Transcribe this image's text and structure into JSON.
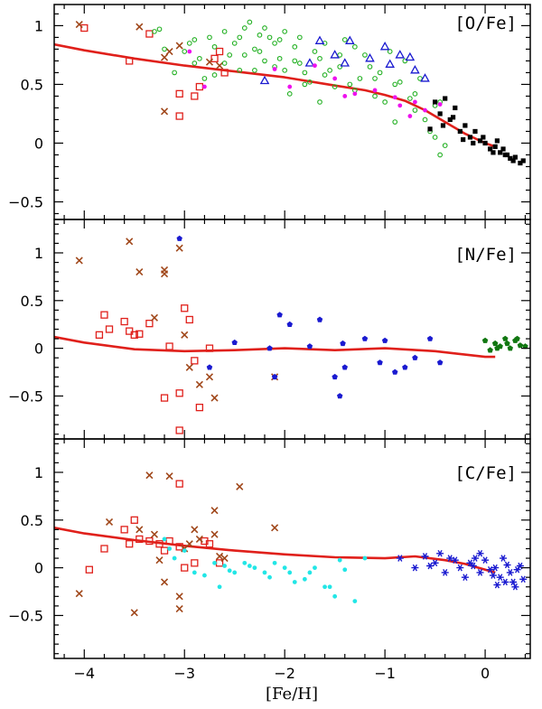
{
  "colors": {
    "model": "#e0201b",
    "red_square": "#e0201b",
    "brown_x": "#a0471a",
    "green_circle": "#22b022",
    "blue_triangle": "#1a1ad0",
    "magenta_dot": "#ee11ee",
    "black_square": "#000000",
    "blue_pentagon": "#1a1ad0",
    "green_pentagon": "#117711",
    "cyan_dot": "#22e6e6",
    "blue_star": "#1a1ad0"
  },
  "chart_data": [
    {
      "type": "scatter",
      "label": "[O/Fe]",
      "xlim": [
        -4.3,
        0.45
      ],
      "ylim": [
        -0.65,
        1.18
      ],
      "xticks": [
        -4,
        -3,
        -2,
        -1,
        0
      ],
      "yticks": [
        1,
        0.5,
        0,
        -0.5
      ],
      "ytick_labels": [
        "1",
        "0.5",
        "0",
        "−0.5"
      ],
      "model": {
        "x": [
          -4.3,
          -4.0,
          -3.5,
          -3.0,
          -2.5,
          -2.0,
          -1.5,
          -1.2,
          -1.0,
          -0.8,
          -0.6,
          -0.4,
          -0.2,
          0.0,
          0.1
        ],
        "y": [
          0.84,
          0.79,
          0.72,
          0.66,
          0.61,
          0.56,
          0.49,
          0.45,
          0.41,
          0.36,
          0.28,
          0.18,
          0.08,
          0.0,
          -0.03
        ]
      },
      "series": [
        {
          "name": "red-square",
          "marker": "square-open",
          "color": "red_square",
          "x": [
            -4.0,
            -3.55,
            -3.35,
            -3.05,
            -3.05,
            -2.9,
            -2.85,
            -2.7,
            -2.65,
            -2.6
          ],
          "y": [
            0.98,
            0.7,
            0.93,
            0.42,
            0.23,
            0.4,
            0.48,
            0.72,
            0.78,
            0.6
          ]
        },
        {
          "name": "brown-x",
          "marker": "x",
          "color": "brown_x",
          "x": [
            -4.05,
            -3.45,
            -3.2,
            -3.2,
            -3.15,
            -3.05,
            -2.75,
            -2.65
          ],
          "y": [
            1.01,
            0.99,
            0.27,
            0.73,
            0.78,
            0.83,
            0.69,
            0.66
          ]
        },
        {
          "name": "green-circle",
          "marker": "circle-open",
          "color": "green_circle",
          "x": [
            -3.3,
            -3.25,
            -3.2,
            -3.1,
            -3.0,
            -2.95,
            -2.9,
            -2.85,
            -2.8,
            -2.75,
            -2.7,
            -2.6,
            -2.55,
            -2.5,
            -2.45,
            -2.4,
            -2.35,
            -2.3,
            -2.25,
            -2.2,
            -2.2,
            -2.15,
            -2.1,
            -2.05,
            -2.0,
            -2.0,
            -1.95,
            -1.9,
            -1.85,
            -1.8,
            -1.75,
            -1.7,
            -1.65,
            -1.6,
            -1.55,
            -1.5,
            -1.45,
            -1.4,
            -1.35,
            -1.3,
            -1.25,
            -1.2,
            -1.15,
            -1.1,
            -1.05,
            -1.0,
            -0.95,
            -0.9,
            -0.85,
            -0.8,
            -0.75,
            -0.7,
            -0.65,
            -0.6,
            -0.55,
            -0.5,
            -0.45,
            -0.45,
            -0.4,
            -2.9,
            -2.6,
            -2.4,
            -2.3,
            -2.1,
            -1.9,
            -1.8,
            -1.6,
            -1.45,
            -1.3,
            -1.1,
            -0.9,
            -0.7,
            -0.5,
            -2.7,
            -2.45,
            -2.25,
            -2.05,
            -1.85,
            -1.65
          ],
          "y": [
            0.95,
            0.97,
            0.8,
            0.6,
            0.78,
            0.85,
            0.88,
            0.72,
            0.55,
            0.9,
            0.58,
            0.95,
            0.75,
            0.85,
            0.9,
            0.98,
            1.03,
            0.62,
            0.78,
            0.7,
            0.98,
            0.9,
            0.85,
            0.72,
            0.95,
            0.62,
            0.42,
            0.82,
            0.9,
            0.5,
            0.52,
            0.78,
            0.35,
            0.85,
            0.62,
            0.48,
            0.75,
            0.88,
            0.5,
            0.82,
            0.55,
            0.75,
            0.65,
            0.4,
            0.6,
            0.35,
            0.78,
            0.18,
            0.52,
            0.7,
            0.38,
            0.28,
            0.55,
            0.2,
            0.1,
            0.05,
            -0.1,
            0.35,
            -0.02,
            0.68,
            0.68,
            0.75,
            0.8,
            0.65,
            0.7,
            0.6,
            0.58,
            0.65,
            0.45,
            0.55,
            0.5,
            0.42,
            0.32,
            0.82,
            0.62,
            0.92,
            0.88,
            0.68,
            0.72
          ]
        },
        {
          "name": "blue-triangle",
          "marker": "triangle-open",
          "color": "blue_triangle",
          "x": [
            -2.2,
            -1.75,
            -1.65,
            -1.5,
            -1.4,
            -1.35,
            -1.15,
            -1.0,
            -0.95,
            -0.85,
            -0.75,
            -0.7,
            -0.6
          ],
          "y": [
            0.53,
            0.68,
            0.87,
            0.75,
            0.68,
            0.87,
            0.72,
            0.82,
            0.67,
            0.75,
            0.73,
            0.62,
            0.55
          ]
        },
        {
          "name": "magenta-dot",
          "marker": "dot",
          "color": "magenta_dot",
          "x": [
            -2.95,
            -2.8,
            -2.1,
            -1.95,
            -1.7,
            -1.4,
            -1.3,
            -1.1,
            -0.9,
            -0.85,
            -0.75,
            -0.6,
            -0.45,
            -0.7,
            -1.5
          ],
          "y": [
            0.78,
            0.48,
            0.63,
            0.48,
            0.66,
            0.4,
            0.42,
            0.45,
            0.39,
            0.32,
            0.23,
            0.28,
            0.33,
            0.35,
            0.55
          ]
        },
        {
          "name": "black-square",
          "marker": "square-filled",
          "color": "black_square",
          "x": [
            -0.55,
            -0.5,
            -0.45,
            -0.4,
            -0.35,
            -0.3,
            -0.25,
            -0.2,
            -0.15,
            -0.1,
            -0.05,
            0.0,
            0.05,
            0.1,
            0.15,
            0.2,
            0.25,
            0.3,
            0.35,
            0.38,
            -0.42,
            -0.32,
            -0.22,
            -0.12,
            -0.02,
            0.08,
            0.18,
            0.28,
            0.12,
            0.22
          ],
          "y": [
            0.12,
            0.35,
            0.25,
            0.38,
            0.2,
            0.3,
            0.1,
            0.15,
            0.05,
            0.1,
            0.02,
            0.0,
            -0.05,
            -0.03,
            -0.08,
            -0.1,
            -0.13,
            -0.12,
            -0.17,
            -0.15,
            0.15,
            0.22,
            0.03,
            0.0,
            0.05,
            -0.08,
            -0.05,
            -0.15,
            0.02,
            -0.1
          ]
        }
      ]
    },
    {
      "type": "scatter",
      "label": "[N/Fe]",
      "xlim": [
        -4.3,
        0.45
      ],
      "ylim": [
        -0.95,
        1.35
      ],
      "xticks": [
        -4,
        -3,
        -2,
        -1,
        0
      ],
      "yticks": [
        1,
        0.5,
        0,
        -0.5
      ],
      "ytick_labels": [
        "1",
        "0.5",
        "0",
        "−0.5"
      ],
      "model": {
        "x": [
          -4.3,
          -4.0,
          -3.5,
          -3.0,
          -2.5,
          -2.0,
          -1.5,
          -1.0,
          -0.5,
          0.0,
          0.1
        ],
        "y": [
          0.12,
          0.06,
          -0.01,
          -0.03,
          -0.02,
          0.0,
          -0.02,
          0.0,
          -0.03,
          -0.09,
          -0.09
        ]
      },
      "series": [
        {
          "name": "red-square",
          "marker": "square-open",
          "color": "red_square",
          "x": [
            -3.85,
            -3.8,
            -3.75,
            -3.6,
            -3.55,
            -3.5,
            -3.45,
            -3.35,
            -3.2,
            -3.15,
            -3.05,
            -3.05,
            -3.0,
            -2.95,
            -2.9,
            -2.85,
            -2.75
          ],
          "y": [
            0.14,
            0.35,
            0.2,
            0.28,
            0.18,
            0.14,
            0.15,
            0.26,
            -0.52,
            0.02,
            -0.47,
            -0.86,
            0.42,
            0.3,
            -0.13,
            -0.62,
            0.0
          ]
        },
        {
          "name": "brown-x",
          "marker": "x",
          "color": "brown_x",
          "x": [
            -4.05,
            -3.55,
            -3.45,
            -3.2,
            -3.2,
            -3.05,
            -3.0,
            -2.95,
            -2.85,
            -2.75,
            -2.7,
            -2.1,
            -3.3
          ],
          "y": [
            0.92,
            1.12,
            0.8,
            0.78,
            0.82,
            1.05,
            0.14,
            -0.2,
            -0.38,
            -0.3,
            -0.52,
            -0.3,
            0.32
          ]
        },
        {
          "name": "blue-pentagon",
          "marker": "pentagon",
          "color": "blue_pentagon",
          "x": [
            -3.05,
            -2.75,
            -2.5,
            -2.15,
            -2.1,
            -2.05,
            -1.95,
            -1.75,
            -1.65,
            -1.5,
            -1.45,
            -1.42,
            -1.4,
            -1.2,
            -1.05,
            -1.0,
            -0.9,
            -0.8,
            -0.7,
            -0.55,
            -0.45
          ],
          "y": [
            1.15,
            -0.2,
            0.06,
            0.0,
            -0.3,
            0.35,
            0.25,
            0.02,
            0.3,
            -0.3,
            -0.5,
            0.05,
            -0.2,
            0.1,
            -0.15,
            0.08,
            -0.25,
            -0.2,
            -0.1,
            0.1,
            -0.15
          ]
        },
        {
          "name": "green-pentagon",
          "marker": "pentagon",
          "color": "green_pentagon",
          "x": [
            0.0,
            0.05,
            0.1,
            0.15,
            0.2,
            0.25,
            0.3,
            0.35,
            0.4,
            0.12,
            0.22,
            0.32
          ],
          "y": [
            0.08,
            -0.02,
            0.05,
            0.02,
            0.1,
            0.0,
            0.08,
            0.03,
            0.02,
            0.0,
            0.05,
            0.1
          ]
        }
      ]
    },
    {
      "type": "scatter",
      "label": "[C/Fe]",
      "xlim": [
        -4.3,
        0.45
      ],
      "ylim": [
        -0.95,
        1.35
      ],
      "xticks": [
        -4,
        -3,
        -2,
        -1,
        0
      ],
      "yticks": [
        1,
        0.5,
        0,
        -0.5
      ],
      "ytick_labels": [
        "1",
        "0.5",
        "0",
        "−0.5"
      ],
      "xlabel": "[Fe/H]",
      "model": {
        "x": [
          -4.3,
          -4.0,
          -3.5,
          -3.0,
          -2.5,
          -2.0,
          -1.5,
          -1.0,
          -0.7,
          -0.4,
          -0.2,
          0.0,
          0.1
        ],
        "y": [
          0.42,
          0.36,
          0.29,
          0.23,
          0.18,
          0.14,
          0.11,
          0.1,
          0.12,
          0.08,
          0.04,
          -0.02,
          -0.05
        ]
      },
      "series": [
        {
          "name": "red-square",
          "marker": "square-open",
          "color": "red_square",
          "x": [
            -3.95,
            -3.8,
            -3.6,
            -3.55,
            -3.5,
            -3.45,
            -3.35,
            -3.25,
            -3.2,
            -3.15,
            -3.05,
            -3.05,
            -3.0,
            -2.9,
            -2.8,
            -2.75,
            -2.65
          ],
          "y": [
            -0.02,
            0.2,
            0.4,
            0.25,
            0.5,
            0.3,
            0.28,
            0.25,
            0.18,
            0.28,
            0.88,
            0.22,
            0.0,
            0.05,
            0.28,
            0.25,
            0.05
          ]
        },
        {
          "name": "brown-x",
          "marker": "x",
          "color": "brown_x",
          "x": [
            -4.05,
            -3.75,
            -3.5,
            -3.45,
            -3.35,
            -3.25,
            -3.2,
            -3.15,
            -3.05,
            -3.05,
            -3.0,
            -2.95,
            -2.9,
            -2.85,
            -2.7,
            -2.7,
            -2.65,
            -2.6,
            -2.45,
            -2.1,
            -3.3
          ],
          "y": [
            -0.27,
            0.48,
            -0.47,
            0.4,
            0.97,
            0.08,
            -0.15,
            0.96,
            -0.3,
            -0.43,
            0.2,
            0.25,
            0.4,
            0.3,
            0.6,
            0.35,
            0.12,
            0.1,
            0.85,
            0.42,
            0.35
          ]
        },
        {
          "name": "cyan-dot",
          "marker": "dot",
          "color": "cyan_dot",
          "x": [
            -3.2,
            -3.1,
            -3.0,
            -2.9,
            -2.8,
            -2.7,
            -2.65,
            -2.6,
            -2.5,
            -2.4,
            -2.3,
            -2.2,
            -2.1,
            -2.0,
            -1.9,
            -1.8,
            -1.7,
            -1.6,
            -1.5,
            -1.45,
            -1.4,
            -1.3,
            -1.2,
            -2.55,
            -2.35,
            -2.15,
            -1.95,
            -1.75,
            -1.55,
            -3.15
          ],
          "y": [
            0.3,
            0.1,
            0.18,
            -0.05,
            -0.08,
            0.05,
            -0.2,
            0.02,
            -0.05,
            0.05,
            0.0,
            -0.05,
            0.05,
            0.0,
            -0.15,
            -0.12,
            0.0,
            -0.2,
            -0.3,
            0.08,
            -0.02,
            -0.35,
            0.1,
            -0.03,
            0.02,
            -0.1,
            -0.05,
            -0.05,
            -0.2,
            0.2
          ]
        },
        {
          "name": "blue-star",
          "marker": "star",
          "color": "blue_star",
          "x": [
            -0.85,
            -0.7,
            -0.6,
            -0.5,
            -0.45,
            -0.4,
            -0.35,
            -0.3,
            -0.25,
            -0.2,
            -0.15,
            -0.1,
            -0.05,
            0.0,
            0.05,
            0.1,
            0.15,
            0.2,
            0.25,
            0.3,
            0.35,
            0.38,
            -0.55,
            -0.05,
            0.12,
            0.22,
            0.32,
            0.28,
            0.18,
            0.08,
            -0.12
          ],
          "y": [
            0.1,
            0.0,
            0.12,
            0.05,
            0.15,
            -0.05,
            0.1,
            0.08,
            0.0,
            -0.1,
            0.05,
            0.1,
            -0.05,
            0.08,
            -0.02,
            0.0,
            -0.1,
            -0.15,
            -0.05,
            -0.2,
            0.02,
            -0.12,
            0.02,
            0.15,
            -0.18,
            0.03,
            -0.02,
            -0.15,
            0.1,
            -0.08,
            0.02
          ]
        }
      ]
    }
  ]
}
